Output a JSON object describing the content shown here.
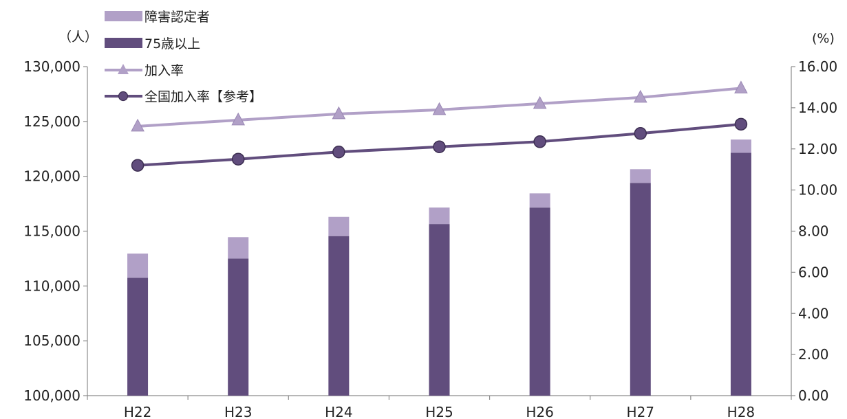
{
  "chart_data": {
    "type": "bar",
    "categories": [
      "H22",
      "H23",
      "H24",
      "H25",
      "H26",
      "H27",
      "H28"
    ],
    "left_axis": {
      "unit_label": "（人）",
      "ylim": [
        100000,
        130000
      ],
      "ticks": [
        100000,
        105000,
        110000,
        115000,
        120000,
        125000,
        130000
      ],
      "tick_labels": [
        "100,000",
        "105,000",
        "110,000",
        "115,000",
        "120,000",
        "125,000",
        "130,000"
      ]
    },
    "right_axis": {
      "unit_label": "(%)",
      "ylim": [
        0,
        16
      ],
      "ticks": [
        0,
        2,
        4,
        6,
        8,
        10,
        12,
        14,
        16
      ],
      "tick_labels": [
        "0.00",
        "2.00",
        "4.00",
        "6.00",
        "8.00",
        "10.00",
        "12.00",
        "14.00",
        "16.00"
      ]
    },
    "series": [
      {
        "name": "75歳以上",
        "kind": "bar",
        "axis": "left",
        "color": "#614d7d",
        "values": [
          110750,
          112500,
          114550,
          115650,
          117150,
          119400,
          122150
        ]
      },
      {
        "name": "障害認定者",
        "kind": "bar",
        "axis": "left",
        "stacked": true,
        "color": "#b1a0c7",
        "values": [
          2200,
          1950,
          1750,
          1500,
          1300,
          1250,
          1200
        ]
      },
      {
        "name": "加入率",
        "kind": "line",
        "axis": "right",
        "marker": "triangle",
        "color": "#b1a0c7",
        "values": [
          13.1,
          13.4,
          13.7,
          13.9,
          14.2,
          14.5,
          14.95
        ]
      },
      {
        "name": "全国加入率【参考】",
        "kind": "line",
        "axis": "right",
        "marker": "circle",
        "color": "#614d7d",
        "values": [
          11.2,
          11.5,
          11.85,
          12.1,
          12.35,
          12.75,
          13.2
        ]
      }
    ],
    "legend": {
      "position": "top-left",
      "order": [
        "障害認定者",
        "75歳以上",
        "加入率",
        "全国加入率【参考】"
      ]
    },
    "grid": false
  }
}
